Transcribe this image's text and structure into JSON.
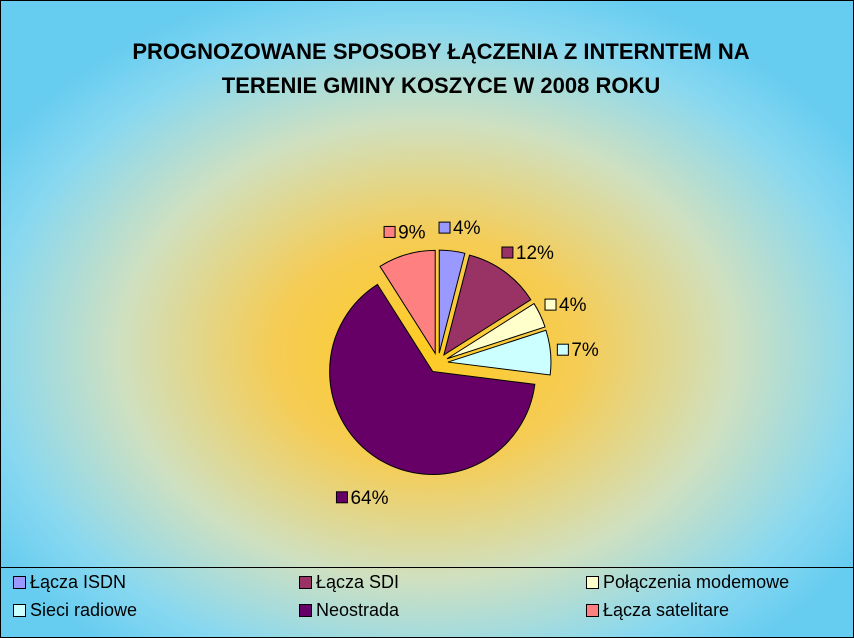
{
  "chart_data": {
    "type": "pie",
    "title": "PROGNOZOWANE SPOSOBY ŁĄCZENIA Z INTERNTEM NA TERENIE GMINY KOSZYCE W 2008 ROKU",
    "categories": [
      "Łącza ISDN",
      "Łącza SDI",
      "Połączenia modemowe",
      "Sieci radiowe",
      "Neostrada",
      "Łącza satelitare"
    ],
    "values": [
      4,
      12,
      4,
      7,
      64,
      9
    ],
    "value_labels": [
      "4%",
      "12%",
      "4%",
      "7%",
      "64%",
      "9%"
    ],
    "colors": [
      "#9999ff",
      "#993366",
      "#ffffcc",
      "#ccffff",
      "#660066",
      "#ff8080"
    ],
    "legend": "bottom"
  }
}
